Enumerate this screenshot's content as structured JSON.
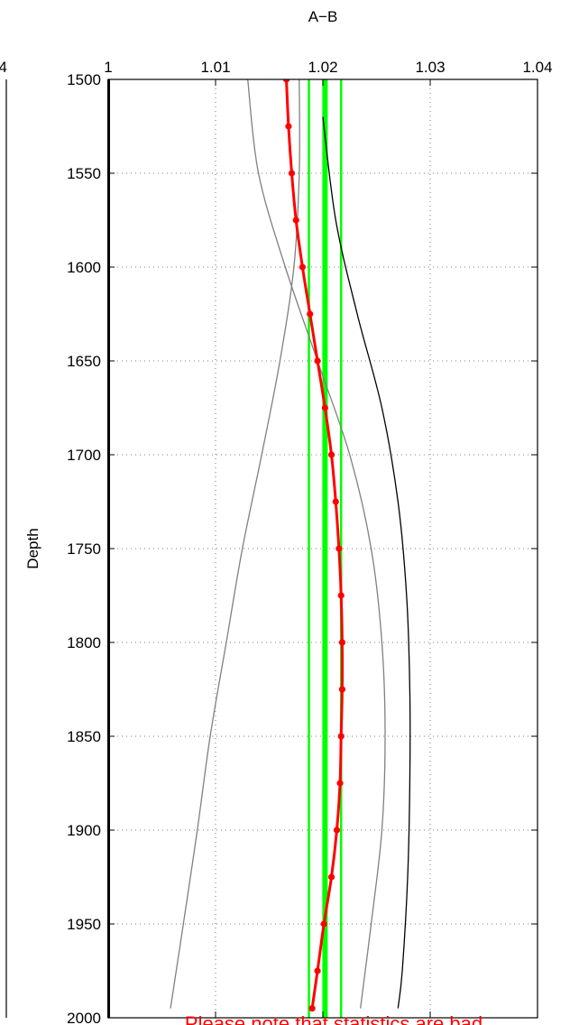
{
  "chart_data": {
    "type": "line",
    "title": "A−B",
    "xlabel": "",
    "ylabel": "Depth",
    "xlim": [
      1.0,
      1.04
    ],
    "ylim": [
      1500,
      2000
    ],
    "y_reversed": true,
    "x_axis_position": "top",
    "grid": true,
    "grid_style": "dotted",
    "xticks": [
      1,
      1.01,
      1.02,
      1.03,
      1.04
    ],
    "xtick_labels": [
      "1",
      "1.01",
      "1.02",
      "1.03",
      "1.04"
    ],
    "yticks": [
      1500,
      1550,
      1600,
      1650,
      1700,
      1750,
      1800,
      1850,
      1900,
      1950,
      2000
    ],
    "ytick_labels": [
      "1500",
      "1550",
      "1600",
      "1650",
      "1700",
      "1750",
      "1800",
      "1850",
      "1900",
      "1950",
      "2000"
    ],
    "neighbor_panel_tick_label": "4",
    "note": "Please note that statistics are bad",
    "vertical_lines": [
      {
        "x": 1.0187,
        "color": "#00ff00",
        "width": "thin"
      },
      {
        "x": 1.0202,
        "color": "#00ff00",
        "width": "thick"
      },
      {
        "x": 1.0217,
        "color": "#00ff00",
        "width": "thin"
      }
    ],
    "series": [
      {
        "color": "#ff0000",
        "style": "line-with-markers",
        "points": [
          [
            1.0166,
            1500
          ],
          [
            1.0168,
            1525
          ],
          [
            1.0171,
            1550
          ],
          [
            1.0175,
            1575
          ],
          [
            1.0181,
            1600
          ],
          [
            1.0188,
            1625
          ],
          [
            1.0195,
            1650
          ],
          [
            1.0202,
            1675
          ],
          [
            1.0208,
            1700
          ],
          [
            1.0212,
            1725
          ],
          [
            1.0215,
            1750
          ],
          [
            1.0217,
            1775
          ],
          [
            1.0218,
            1800
          ],
          [
            1.0218,
            1825
          ],
          [
            1.0217,
            1850
          ],
          [
            1.0216,
            1875
          ],
          [
            1.0213,
            1900
          ],
          [
            1.0208,
            1925
          ],
          [
            1.0201,
            1950
          ],
          [
            1.0195,
            1975
          ],
          [
            1.019,
            1995
          ]
        ]
      },
      {
        "color": "#000000",
        "style": "line",
        "points": [
          [
            1.02,
            1520
          ],
          [
            1.0212,
            1575
          ],
          [
            1.0232,
            1625
          ],
          [
            1.0255,
            1675
          ],
          [
            1.027,
            1725
          ],
          [
            1.0278,
            1775
          ],
          [
            1.0281,
            1825
          ],
          [
            1.0281,
            1875
          ],
          [
            1.0279,
            1925
          ],
          [
            1.0274,
            1975
          ],
          [
            1.027,
            1995
          ]
        ]
      },
      {
        "color": "#808080",
        "style": "line",
        "points": [
          [
            1.013,
            1500
          ],
          [
            1.014,
            1550
          ],
          [
            1.0165,
            1600
          ],
          [
            1.0195,
            1650
          ],
          [
            1.0225,
            1700
          ],
          [
            1.0245,
            1750
          ],
          [
            1.0255,
            1800
          ],
          [
            1.0258,
            1850
          ],
          [
            1.0255,
            1900
          ],
          [
            1.0245,
            1950
          ],
          [
            1.0235,
            1995
          ]
        ]
      },
      {
        "color": "#808080",
        "style": "line",
        "points": [
          [
            1.0178,
            1500
          ],
          [
            1.0178,
            1550
          ],
          [
            1.0173,
            1600
          ],
          [
            1.016,
            1650
          ],
          [
            1.0143,
            1700
          ],
          [
            1.0125,
            1750
          ],
          [
            1.011,
            1800
          ],
          [
            1.0095,
            1850
          ],
          [
            1.0083,
            1900
          ],
          [
            1.007,
            1950
          ],
          [
            1.0058,
            1995
          ]
        ]
      }
    ]
  }
}
